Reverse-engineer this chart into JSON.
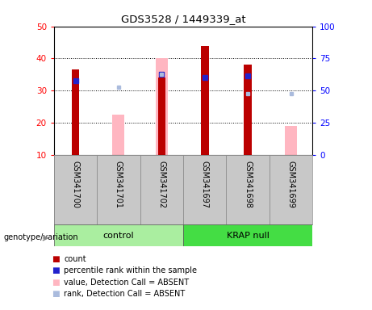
{
  "title": "GDS3528 / 1449339_at",
  "samples": [
    "GSM341700",
    "GSM341701",
    "GSM341702",
    "GSM341697",
    "GSM341698",
    "GSM341699"
  ],
  "ylim_left": [
    10,
    50
  ],
  "ylim_right": [
    0,
    100
  ],
  "yticks_left": [
    10,
    20,
    30,
    40,
    50
  ],
  "yticks_right": [
    0,
    25,
    50,
    75,
    100
  ],
  "red_bars": [
    36.5,
    null,
    34.0,
    44.0,
    38.0,
    null
  ],
  "blue_markers": [
    33.0,
    null,
    35.0,
    34.0,
    34.5,
    null
  ],
  "pink_bars": [
    null,
    22.5,
    40.0,
    null,
    null,
    19.0
  ],
  "lightblue_markers": [
    null,
    31.0,
    35.0,
    null,
    29.0,
    29.0
  ],
  "red_bar_width": 0.18,
  "pink_bar_width": 0.28,
  "red_color": "#BB0000",
  "blue_color": "#2222CC",
  "pink_color": "#FFB6C1",
  "lightblue_color": "#AABBDD",
  "bg_gray": "#C8C8C8",
  "bg_control": "#AAEEA0",
  "bg_krap": "#44DD44",
  "group_control_label": "control",
  "group_krap_label": "KRAP null",
  "legend_items": [
    {
      "color": "#BB0000",
      "label": "count"
    },
    {
      "color": "#2222CC",
      "label": "percentile rank within the sample"
    },
    {
      "color": "#FFB6C1",
      "label": "value, Detection Call = ABSENT"
    },
    {
      "color": "#AABBDD",
      "label": "rank, Detection Call = ABSENT"
    }
  ]
}
